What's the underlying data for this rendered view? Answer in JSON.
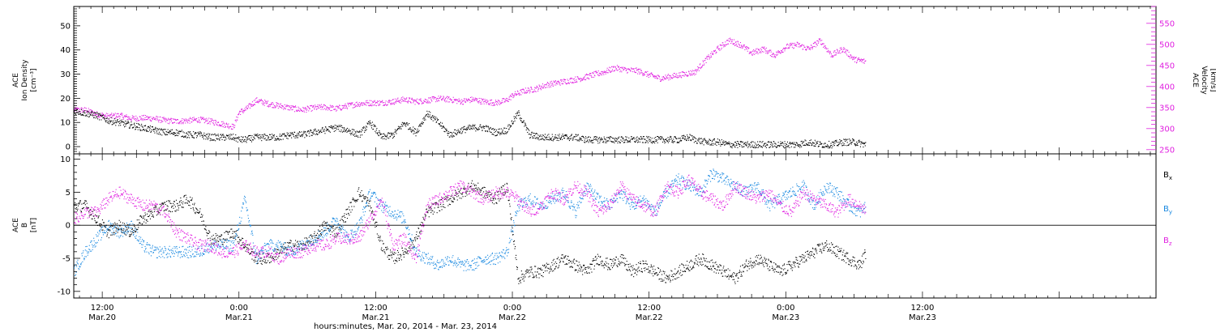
{
  "xaxis": {
    "label": "hours:minutes, Mar. 20, 2014 - Mar. 23, 2014",
    "range_hours": [
      -2.5,
      92.5
    ],
    "ticks": [
      {
        "hours": 0,
        "time": "12:00",
        "date": "Mar.20"
      },
      {
        "hours": 12,
        "time": "0:00",
        "date": "Mar.21"
      },
      {
        "hours": 24,
        "time": "12:00",
        "date": "Mar.21"
      },
      {
        "hours": 36,
        "time": "0:00",
        "date": "Mar.22"
      },
      {
        "hours": 48,
        "time": "12:00",
        "date": "Mar.22"
      },
      {
        "hours": 60,
        "time": "0:00",
        "date": "Mar.23"
      },
      {
        "hours": 72,
        "time": "12:00",
        "date": "Mar.23"
      }
    ]
  },
  "chart_data": [
    {
      "type": "scatter",
      "panel": "top",
      "ylabel_left": [
        "ACE",
        "Ion Density",
        "[cm⁻³]"
      ],
      "ylabel_right": [
        "ACE",
        "Velocity",
        "[km/s]"
      ],
      "ylim_left": [
        -3,
        58
      ],
      "yticks_left": [
        0,
        10,
        20,
        30,
        40,
        50
      ],
      "ylim_right": [
        240,
        590
      ],
      "yticks_right": [
        250,
        300,
        350,
        400,
        450,
        500,
        550
      ],
      "series": [
        {
          "axis": "left",
          "color": "#000000",
          "x": [
            -2.5,
            -1.5,
            -0.5,
            0.5,
            1.5,
            2.5,
            3.5,
            4.5,
            5.5,
            6.5,
            7.5,
            8.5,
            9.5,
            10.5,
            11.5,
            12,
            12.5,
            13.5,
            14.5,
            15.5,
            16.5,
            17.5,
            18.5,
            19.5,
            20.5,
            21.5,
            22.5,
            23.5,
            24.5,
            25.5,
            26.5,
            27.5,
            28.5,
            29.5,
            30.5,
            31.5,
            32.5,
            33.5,
            34.5,
            35.5,
            36.5,
            37.5,
            38.5,
            39.5,
            40.5,
            41.5,
            42.5,
            43.5,
            44.5,
            45.5,
            46.5,
            47.5,
            48.5,
            49.5,
            50.5,
            51.5,
            52,
            53,
            54,
            55,
            56,
            57,
            58,
            59,
            60,
            61,
            62,
            63,
            64,
            65,
            66,
            67
          ],
          "y": [
            15,
            14,
            13,
            11,
            10,
            9,
            8,
            7,
            6,
            6,
            5,
            5,
            4,
            4,
            4,
            3,
            3,
            4,
            4,
            4,
            5,
            5,
            6,
            7,
            8,
            7,
            5,
            10,
            4,
            5,
            10,
            6,
            14,
            10,
            5,
            7,
            8,
            8,
            6,
            7,
            14,
            5,
            4,
            4,
            4,
            4,
            3,
            3,
            3,
            3,
            3,
            3,
            3,
            3,
            3,
            4,
            3,
            2,
            2,
            1,
            1,
            1,
            1,
            1,
            1,
            1,
            2,
            1,
            1,
            2,
            2,
            1
          ]
        },
        {
          "axis": "right",
          "color": "#e020e0",
          "x": [
            -2.5,
            -1.5,
            -0.5,
            0.5,
            1.5,
            2.5,
            3.5,
            4.5,
            5.5,
            6.5,
            7.5,
            8.5,
            9.5,
            10.5,
            11.5,
            12,
            12.5,
            13.5,
            14.5,
            15.5,
            16.5,
            17.5,
            18.5,
            19.5,
            20.5,
            21.5,
            22.5,
            23.5,
            24.5,
            25.5,
            26.5,
            27.5,
            28.5,
            29.5,
            30.5,
            31.5,
            32.5,
            33.5,
            34.5,
            35.5,
            36,
            37,
            38,
            39,
            40,
            41,
            42,
            43,
            44,
            45,
            46,
            47,
            48,
            49,
            50,
            51,
            52,
            53,
            54,
            55,
            56,
            57,
            58,
            59,
            60,
            61,
            62,
            63,
            64,
            65,
            66,
            67
          ],
          "y": [
            345,
            345,
            335,
            330,
            332,
            325,
            326,
            325,
            320,
            318,
            320,
            322,
            318,
            312,
            305,
            340,
            345,
            368,
            360,
            355,
            350,
            345,
            350,
            352,
            348,
            355,
            360,
            362,
            362,
            365,
            370,
            365,
            368,
            372,
            370,
            365,
            370,
            365,
            362,
            368,
            380,
            390,
            395,
            405,
            410,
            415,
            420,
            428,
            435,
            445,
            440,
            438,
            428,
            420,
            425,
            430,
            435,
            465,
            490,
            510,
            500,
            480,
            490,
            475,
            495,
            500,
            490,
            510,
            475,
            490,
            465,
            460
          ]
        }
      ]
    },
    {
      "type": "scatter",
      "panel": "bottom",
      "ylabel_left": [
        "ACE",
        "B",
        "[nT]"
      ],
      "ylim": [
        -11,
        10.8
      ],
      "yticks": [
        -10,
        -5,
        0,
        5,
        10
      ],
      "zero_line": true,
      "series": [
        {
          "name": "Bx",
          "color": "#000000",
          "x": [
            -2.5,
            -1.5,
            -0.5,
            0.5,
            1.5,
            2.5,
            3.5,
            4.5,
            5.5,
            6.5,
            7.5,
            8.5,
            9.5,
            10.5,
            11.5,
            12.5,
            13.5,
            14.5,
            15.5,
            16.5,
            17.5,
            18.5,
            19.5,
            20.5,
            21.5,
            22.5,
            23.5,
            24.5,
            25.5,
            26.5,
            27.5,
            28.5,
            29.5,
            30.5,
            31.5,
            32.5,
            33.5,
            34.5,
            35.5,
            36.5,
            37.5,
            38.5,
            39.5,
            40.5,
            41.5,
            42.5,
            43.5,
            44.5,
            45.5,
            46.5,
            47.5,
            48.5,
            49.5,
            50.5,
            51.5,
            52.5,
            53.5,
            54.5,
            55.5,
            56.5,
            57.5,
            58.5,
            59.5,
            60.5,
            61.5,
            62.5,
            63.5,
            64.5,
            65.5,
            66.5,
            67
          ],
          "y": [
            3,
            3,
            1,
            -1,
            0,
            -1,
            1,
            2,
            3,
            3,
            4,
            2,
            -2,
            -2,
            -1,
            -3,
            -5,
            -5,
            -4,
            -3,
            -3,
            -2,
            0,
            -1,
            2,
            5,
            3,
            -3,
            -5,
            -4,
            -2,
            2,
            3,
            4,
            5,
            6,
            5,
            4,
            6,
            -8,
            -7,
            -7,
            -6,
            -5,
            -6,
            -7,
            -5,
            -6,
            -5,
            -7,
            -6,
            -7,
            -8,
            -7,
            -6,
            -5,
            -6,
            -7,
            -8,
            -6,
            -5,
            -6,
            -7,
            -6,
            -5,
            -4,
            -3,
            -4,
            -5,
            -6,
            -4
          ]
        },
        {
          "name": "By",
          "color": "#1888e0",
          "x": [
            -2.5,
            -1.5,
            -0.5,
            0.5,
            1.5,
            2.5,
            3.5,
            4.5,
            5.5,
            6.5,
            7.5,
            8.5,
            9.5,
            10.5,
            11.5,
            12.5,
            13.5,
            14.5,
            15.5,
            16.5,
            17.5,
            18.5,
            19.5,
            20.5,
            21.5,
            22.5,
            23.5,
            24.5,
            25.5,
            26.5,
            27.5,
            28.5,
            29.5,
            30.5,
            31.5,
            32.5,
            33.5,
            34.5,
            35.5,
            36.5,
            37.5,
            38.5,
            39.5,
            40.5,
            41.5,
            42.5,
            43.5,
            44.5,
            45.5,
            46.5,
            47.5,
            48.5,
            49.5,
            50.5,
            51.5,
            52.5,
            53.5,
            54.5,
            55.5,
            56.5,
            57.5,
            58.5,
            59.5,
            60.5,
            61.5,
            62.5,
            63.5,
            64.5,
            65.5,
            66.5,
            67
          ],
          "y": [
            -7,
            -4,
            -2,
            0,
            -1,
            0,
            -3,
            -4,
            -4,
            -4,
            -4,
            -4,
            -3,
            -3,
            -3,
            4,
            -5,
            -3,
            -3,
            -4,
            -3,
            -2,
            -1,
            1,
            -2,
            0,
            5,
            3,
            2,
            1,
            -4,
            -5,
            -6,
            -5,
            -6,
            -6,
            -5,
            -5,
            -4,
            3,
            4,
            3,
            4,
            5,
            2,
            6,
            4,
            3,
            5,
            3,
            4,
            2,
            5,
            7,
            6,
            5,
            8,
            7,
            6,
            5,
            6,
            3,
            4,
            5,
            6,
            3,
            6,
            5,
            3,
            2,
            3
          ]
        },
        {
          "name": "Bz",
          "color": "#e020e0",
          "x": [
            -2.5,
            -1.5,
            -0.5,
            0.5,
            1.5,
            2.5,
            3.5,
            4.5,
            5.5,
            6.5,
            7.5,
            8.5,
            9.5,
            10.5,
            11.5,
            12.5,
            13.5,
            14.5,
            15.5,
            16.5,
            17.5,
            18.5,
            19.5,
            20.5,
            21.5,
            22.5,
            23.5,
            24.5,
            25.5,
            26.5,
            27.5,
            28.5,
            29.5,
            30.5,
            31.5,
            32.5,
            33.5,
            34.5,
            35.5,
            36.5,
            37.5,
            38.5,
            39.5,
            40.5,
            41.5,
            42.5,
            43.5,
            44.5,
            45.5,
            46.5,
            47.5,
            48.5,
            49.5,
            50.5,
            51.5,
            52.5,
            53.5,
            54.5,
            55.5,
            56.5,
            57.5,
            58.5,
            59.5,
            60.5,
            61.5,
            62.5,
            63.5,
            64.5,
            65.5,
            66.5,
            67
          ],
          "y": [
            1,
            2,
            2,
            4,
            5,
            4,
            3,
            3,
            2,
            -1,
            -2,
            -3,
            -3,
            -4,
            -4,
            -3,
            -4,
            -4,
            -5,
            -4,
            -4,
            -3,
            -3,
            -2,
            -2,
            -2,
            1,
            4,
            -3,
            -2,
            -5,
            3,
            4,
            5,
            6,
            5,
            4,
            5,
            5,
            4,
            2,
            3,
            5,
            4,
            6,
            5,
            2,
            3,
            6,
            4,
            3,
            2,
            6,
            5,
            7,
            5,
            4,
            3,
            6,
            5,
            4,
            5,
            3,
            2,
            5,
            4,
            3,
            2,
            4,
            3,
            2
          ]
        }
      ]
    }
  ],
  "legend": {
    "bx_main": "B",
    "bx_sub": "x",
    "by_main": "B",
    "by_sub": "y",
    "bz_main": "B",
    "bz_sub": "z"
  }
}
